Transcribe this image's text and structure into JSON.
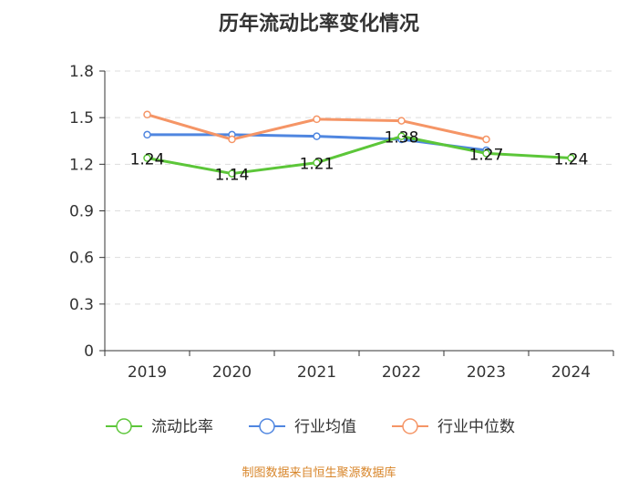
{
  "chart_data": {
    "type": "line",
    "title": "历年流动比率变化情况",
    "categories": [
      "2019",
      "2020",
      "2021",
      "2022",
      "2023",
      "2024"
    ],
    "ylim": [
      0,
      1.8
    ],
    "yticks": [
      "0",
      "0.3",
      "0.6",
      "0.9",
      "1.2",
      "1.5",
      "1.8"
    ],
    "grid": true,
    "legend_position": "bottom-center",
    "series": [
      {
        "name": "流动比率",
        "color": "#5cc639",
        "values": [
          1.24,
          1.14,
          1.21,
          1.38,
          1.27,
          1.24
        ],
        "labels": [
          "1.24",
          "1.14",
          "1.21",
          "1.38",
          "1.27",
          "1.24"
        ]
      },
      {
        "name": "行业均值",
        "color": "#4f86e0",
        "values": [
          1.39,
          1.39,
          1.38,
          1.36,
          1.29,
          null
        ]
      },
      {
        "name": "行业中位数",
        "color": "#f59566",
        "values": [
          1.52,
          1.36,
          1.49,
          1.48,
          1.36,
          null
        ]
      }
    ]
  },
  "source": "制图数据来自恒生聚源数据库"
}
